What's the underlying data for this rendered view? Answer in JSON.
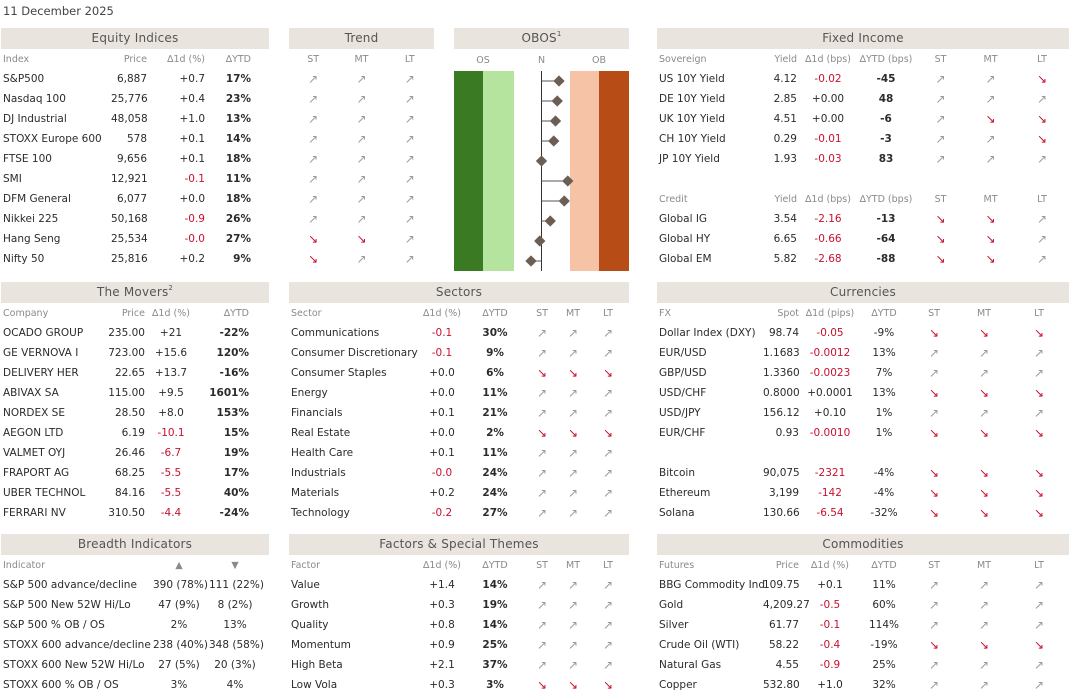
{
  "date": "11 December 2025",
  "colors": {
    "header_bg": "#e9e4dd",
    "negative": "#c8102e",
    "oversold_dark": "#3a7a22",
    "oversold_light": "#b5e49e",
    "overbought_light": "#f6c3a6",
    "overbought_dark": "#b84c16",
    "marker": "#6b5e55"
  },
  "icons": {
    "up": "arrow-up-right-icon",
    "down": "arrow-down-right-icon"
  },
  "equity": {
    "title": "Equity Indices",
    "headers": [
      "Index",
      "Price",
      "∆1d (%)",
      "∆YTD"
    ],
    "rows": [
      [
        "S&P500",
        "6,887",
        "+0.7",
        "17%"
      ],
      [
        "Nasdaq 100",
        "25,776",
        "+0.4",
        "23%"
      ],
      [
        "DJ Industrial",
        "48,058",
        "+1.0",
        "13%"
      ],
      [
        "STOXX Europe 600",
        "578",
        "+0.1",
        "14%"
      ],
      [
        "FTSE 100",
        "9,656",
        "+0.1",
        "18%"
      ],
      [
        "SMI",
        "12,921",
        "-0.1",
        "11%"
      ],
      [
        "DFM General",
        "6,077",
        "+0.0",
        "18%"
      ],
      [
        "Nikkei 225",
        "50,168",
        "-0.9",
        "26%"
      ],
      [
        "Hang Seng",
        "25,534",
        "-0.0",
        "27%"
      ],
      [
        "Nifty 50",
        "25,816",
        "+0.2",
        "9%"
      ]
    ]
  },
  "trend": {
    "title": "Trend",
    "headers": [
      "ST",
      "MT",
      "LT"
    ],
    "rows": [
      [
        "up",
        "up",
        "up"
      ],
      [
        "up",
        "up",
        "up"
      ],
      [
        "up",
        "up",
        "up"
      ],
      [
        "up",
        "up",
        "up"
      ],
      [
        "up",
        "up",
        "up"
      ],
      [
        "up",
        "up",
        "up"
      ],
      [
        "up",
        "up",
        "up"
      ],
      [
        "up",
        "up",
        "up"
      ],
      [
        "down",
        "down",
        "up"
      ],
      [
        "down",
        "up",
        "up"
      ]
    ]
  },
  "obos": {
    "title": "OBOS",
    "footnote": "1",
    "labels": [
      "OS",
      "N",
      "OB"
    ],
    "levels": [
      0.6,
      0.59,
      0.58,
      0.57,
      0.5,
      0.65,
      0.63,
      0.55,
      0.49,
      0.44
    ]
  },
  "fixed_income": {
    "title": "Fixed Income",
    "headers": [
      "Sovereign",
      "Yield",
      "∆1d (bps)",
      "∆YTD (bps)",
      "ST",
      "MT",
      "LT"
    ],
    "rows": [
      [
        "US 10Y Yield",
        "4.12",
        "-0.02",
        "-45",
        "up",
        "up",
        "down"
      ],
      [
        "DE 10Y Yield",
        "2.85",
        "+0.00",
        "48",
        "up",
        "up",
        "up"
      ],
      [
        "UK 10Y Yield",
        "4.51",
        "+0.00",
        "-6",
        "up",
        "down",
        "down"
      ],
      [
        "CH 10Y Yield",
        "0.29",
        "-0.01",
        "-3",
        "up",
        "up",
        "down"
      ],
      [
        "JP 10Y Yield",
        "1.93",
        "-0.03",
        "83",
        "up",
        "up",
        "up"
      ]
    ],
    "credit_headers": [
      "Credit",
      "Yield",
      "∆1d (bps)",
      "∆YTD (bps)",
      "ST",
      "MT",
      "LT"
    ],
    "credit_rows": [
      [
        "Global IG",
        "3.54",
        "-2.16",
        "-13",
        "down",
        "down",
        "up"
      ],
      [
        "Global HY",
        "6.65",
        "-0.66",
        "-64",
        "down",
        "down",
        "up"
      ],
      [
        "Global EM",
        "5.82",
        "-2.68",
        "-88",
        "down",
        "down",
        "up"
      ]
    ]
  },
  "movers": {
    "title": "The Movers",
    "footnote": "2",
    "headers": [
      "Company",
      "Price",
      "∆1d (%)",
      "∆YTD"
    ],
    "rows": [
      [
        "OCADO GROUP",
        "235.00",
        "+21",
        "-22%"
      ],
      [
        "GE VERNOVA I",
        "723.00",
        "+15.6",
        "120%"
      ],
      [
        "DELIVERY HER",
        "22.65",
        "+13.7",
        "-16%"
      ],
      [
        "ABIVAX SA",
        "115.00",
        "+9.5",
        "1601%"
      ],
      [
        "NORDEX SE",
        "28.50",
        "+8.0",
        "153%"
      ],
      [
        "AEGON LTD",
        "6.19",
        "-10.1",
        "15%"
      ],
      [
        "VALMET OYJ",
        "26.46",
        "-6.7",
        "19%"
      ],
      [
        "FRAPORT AG",
        "68.25",
        "-5.5",
        "17%"
      ],
      [
        "UBER TECHNOL",
        "84.16",
        "-5.5",
        "40%"
      ],
      [
        "FERRARI NV",
        "310.50",
        "-4.4",
        "-24%"
      ]
    ]
  },
  "sectors": {
    "title": "Sectors",
    "headers": [
      "Sector",
      "∆1d (%)",
      "∆YTD",
      "ST",
      "MT",
      "LT"
    ],
    "rows": [
      [
        "Communications",
        "-0.1",
        "30%",
        "up",
        "up",
        "up"
      ],
      [
        "Consumer Discretionary",
        "-0.1",
        "9%",
        "up",
        "up",
        "up"
      ],
      [
        "Consumer Staples",
        "+0.0",
        "6%",
        "down",
        "down",
        "down"
      ],
      [
        "Energy",
        "+0.0",
        "11%",
        "up",
        "up",
        "up"
      ],
      [
        "Financials",
        "+0.1",
        "21%",
        "up",
        "up",
        "up"
      ],
      [
        "Real Estate",
        "+0.0",
        "2%",
        "down",
        "down",
        "down"
      ],
      [
        "Health Care",
        "+0.1",
        "11%",
        "up",
        "up",
        "up"
      ],
      [
        "Industrials",
        "-0.0",
        "24%",
        "up",
        "up",
        "up"
      ],
      [
        "Materials",
        "+0.2",
        "24%",
        "up",
        "up",
        "up"
      ],
      [
        "Technology",
        "-0.2",
        "27%",
        "up",
        "up",
        "up"
      ]
    ]
  },
  "currencies": {
    "title": "Currencies",
    "headers": [
      "FX",
      "Spot",
      "∆1d (pips)",
      "∆YTD",
      "ST",
      "MT",
      "LT"
    ],
    "rows": [
      [
        "Dollar Index (DXY)",
        "98.74",
        "-0.05",
        "-9%",
        "down",
        "down",
        "down"
      ],
      [
        "EUR/USD",
        "1.1683",
        "-0.0012",
        "13%",
        "up",
        "up",
        "up"
      ],
      [
        "GBP/USD",
        "1.3360",
        "-0.0023",
        "7%",
        "up",
        "up",
        "up"
      ],
      [
        "USD/CHF",
        "0.8000",
        "+0.0001",
        "13%",
        "down",
        "down",
        "down"
      ],
      [
        "USD/JPY",
        "156.12",
        "+0.10",
        "1%",
        "up",
        "up",
        "up"
      ],
      [
        "EUR/CHF",
        "0.93",
        "-0.0010",
        "1%",
        "down",
        "down",
        "down"
      ]
    ],
    "crypto_rows": [
      [
        "Bitcoin",
        "90,075",
        "-2321",
        "-4%",
        "down",
        "down",
        "down"
      ],
      [
        "Ethereum",
        "3,199",
        "-142",
        "-4%",
        "down",
        "down",
        "down"
      ],
      [
        "Solana",
        "130.66",
        "-6.54",
        "-32%",
        "down",
        "down",
        "down"
      ]
    ]
  },
  "breadth": {
    "title": "Breadth Indicators",
    "headers": [
      "Indicator",
      "▲",
      "▼"
    ],
    "rows": [
      [
        "S&P 500 advance/decline",
        "390 (78%)",
        "111 (22%)"
      ],
      [
        "S&P 500 New 52W Hi/Lo",
        "47 (9%)",
        "8 (2%)"
      ],
      [
        "S&P 500 % OB / OS",
        "2%",
        "13%"
      ],
      [
        "STOXX 600 advance/decline",
        "238 (40%)",
        "348 (58%)"
      ],
      [
        "STOXX 600 New 52W Hi/Lo",
        "27 (5%)",
        "20 (3%)"
      ],
      [
        "STOXX 600 % OB / OS",
        "3%",
        "4%"
      ]
    ]
  },
  "factors": {
    "title": "Factors & Special Themes",
    "headers": [
      "Factor",
      "∆1d (%)",
      "∆YTD",
      "ST",
      "MT",
      "LT"
    ],
    "rows": [
      [
        "Value",
        "+1.4",
        "14%",
        "up",
        "up",
        "up"
      ],
      [
        "Growth",
        "+0.3",
        "19%",
        "up",
        "up",
        "up"
      ],
      [
        "Quality",
        "+0.8",
        "14%",
        "up",
        "up",
        "up"
      ],
      [
        "Momentum",
        "+0.9",
        "25%",
        "up",
        "up",
        "up"
      ],
      [
        "High Beta",
        "+2.1",
        "37%",
        "up",
        "up",
        "up"
      ],
      [
        "Low Vola",
        "+0.3",
        "3%",
        "down",
        "down",
        "down"
      ]
    ]
  },
  "commodities": {
    "title": "Commodities",
    "headers": [
      "Futures",
      "Price",
      "∆1d (%)",
      "∆YTD",
      "ST",
      "MT",
      "LT"
    ],
    "rows": [
      [
        "BBG Commodity Ind",
        "109.75",
        "+0.1",
        "11%",
        "up",
        "up",
        "up"
      ],
      [
        "Gold",
        "4,209.27",
        "-0.5",
        "60%",
        "up",
        "up",
        "up"
      ],
      [
        "Silver",
        "61.77",
        "-0.1",
        "114%",
        "up",
        "up",
        "up"
      ],
      [
        "Crude Oil (WTI)",
        "58.22",
        "-0.4",
        "-19%",
        "down",
        "down",
        "down"
      ],
      [
        "Natural Gas",
        "4.55",
        "-0.9",
        "25%",
        "up",
        "up",
        "up"
      ],
      [
        "Copper",
        "532.80",
        "+1.0",
        "32%",
        "up",
        "up",
        "up"
      ]
    ]
  }
}
